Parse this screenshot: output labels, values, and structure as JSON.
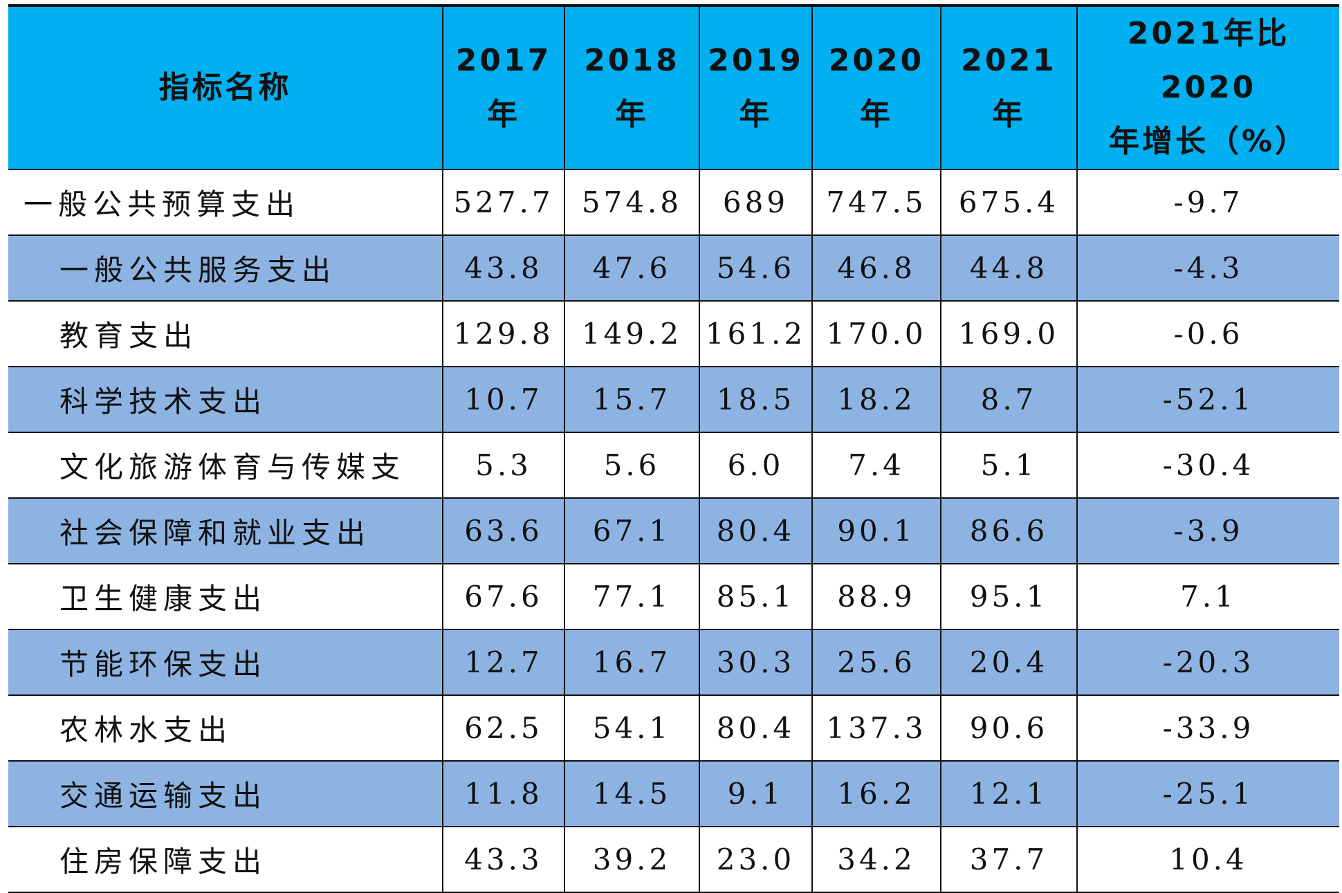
{
  "table": {
    "headers": {
      "name": "指标名称",
      "years": [
        {
          "line1": "2017",
          "line2": "年"
        },
        {
          "line1": "2018",
          "line2": "年"
        },
        {
          "line1": "2019",
          "line2": "年"
        },
        {
          "line1": "2020",
          "line2": "年"
        },
        {
          "line1": "2021",
          "line2": "年"
        }
      ],
      "growth": {
        "line1": "2021年比2020",
        "line2": "年增长（%）"
      }
    },
    "rows": [
      {
        "name": "一般公共预算支出",
        "values": [
          "527.7",
          "574.8",
          "689",
          "747.5",
          "675.4"
        ],
        "growth": "-9.7"
      },
      {
        "name": "一般公共服务支出",
        "values": [
          "43.8",
          "47.6",
          "54.6",
          "46.8",
          "44.8"
        ],
        "growth": "-4.3"
      },
      {
        "name": "教育支出",
        "values": [
          "129.8",
          "149.2",
          "161.2",
          "170.0",
          "169.0"
        ],
        "growth": "-0.6"
      },
      {
        "name": "科学技术支出",
        "values": [
          "10.7",
          "15.7",
          "18.5",
          "18.2",
          "8.7"
        ],
        "growth": "-52.1"
      },
      {
        "name": "文化旅游体育与传媒支",
        "values": [
          "5.3",
          "5.6",
          "6.0",
          "7.4",
          "5.1"
        ],
        "growth": "-30.4"
      },
      {
        "name": "社会保障和就业支出",
        "values": [
          "63.6",
          "67.1",
          "80.4",
          "90.1",
          "86.6"
        ],
        "growth": "-3.9"
      },
      {
        "name": "卫生健康支出",
        "values": [
          "67.6",
          "77.1",
          "85.1",
          "88.9",
          "95.1"
        ],
        "growth": "7.1"
      },
      {
        "name": "节能环保支出",
        "values": [
          "12.7",
          "16.7",
          "30.3",
          "25.6",
          "20.4"
        ],
        "growth": "-20.3"
      },
      {
        "name": "农林水支出",
        "values": [
          "62.5",
          "54.1",
          "80.4",
          "137.3",
          "90.6"
        ],
        "growth": "-33.9"
      },
      {
        "name": "交通运输支出",
        "values": [
          "11.8",
          "14.5",
          "9.1",
          "16.2",
          "12.1"
        ],
        "growth": "-25.1"
      },
      {
        "name": "住房保障支出",
        "values": [
          "43.3",
          "39.2",
          "23.0",
          "34.2",
          "37.7"
        ],
        "growth": "10.4"
      }
    ]
  },
  "colors": {
    "header_bg": "#00b0f0",
    "shaded_row_bg": "#8db3e2",
    "plain_row_bg": "#ffffff",
    "border": "#111111"
  }
}
